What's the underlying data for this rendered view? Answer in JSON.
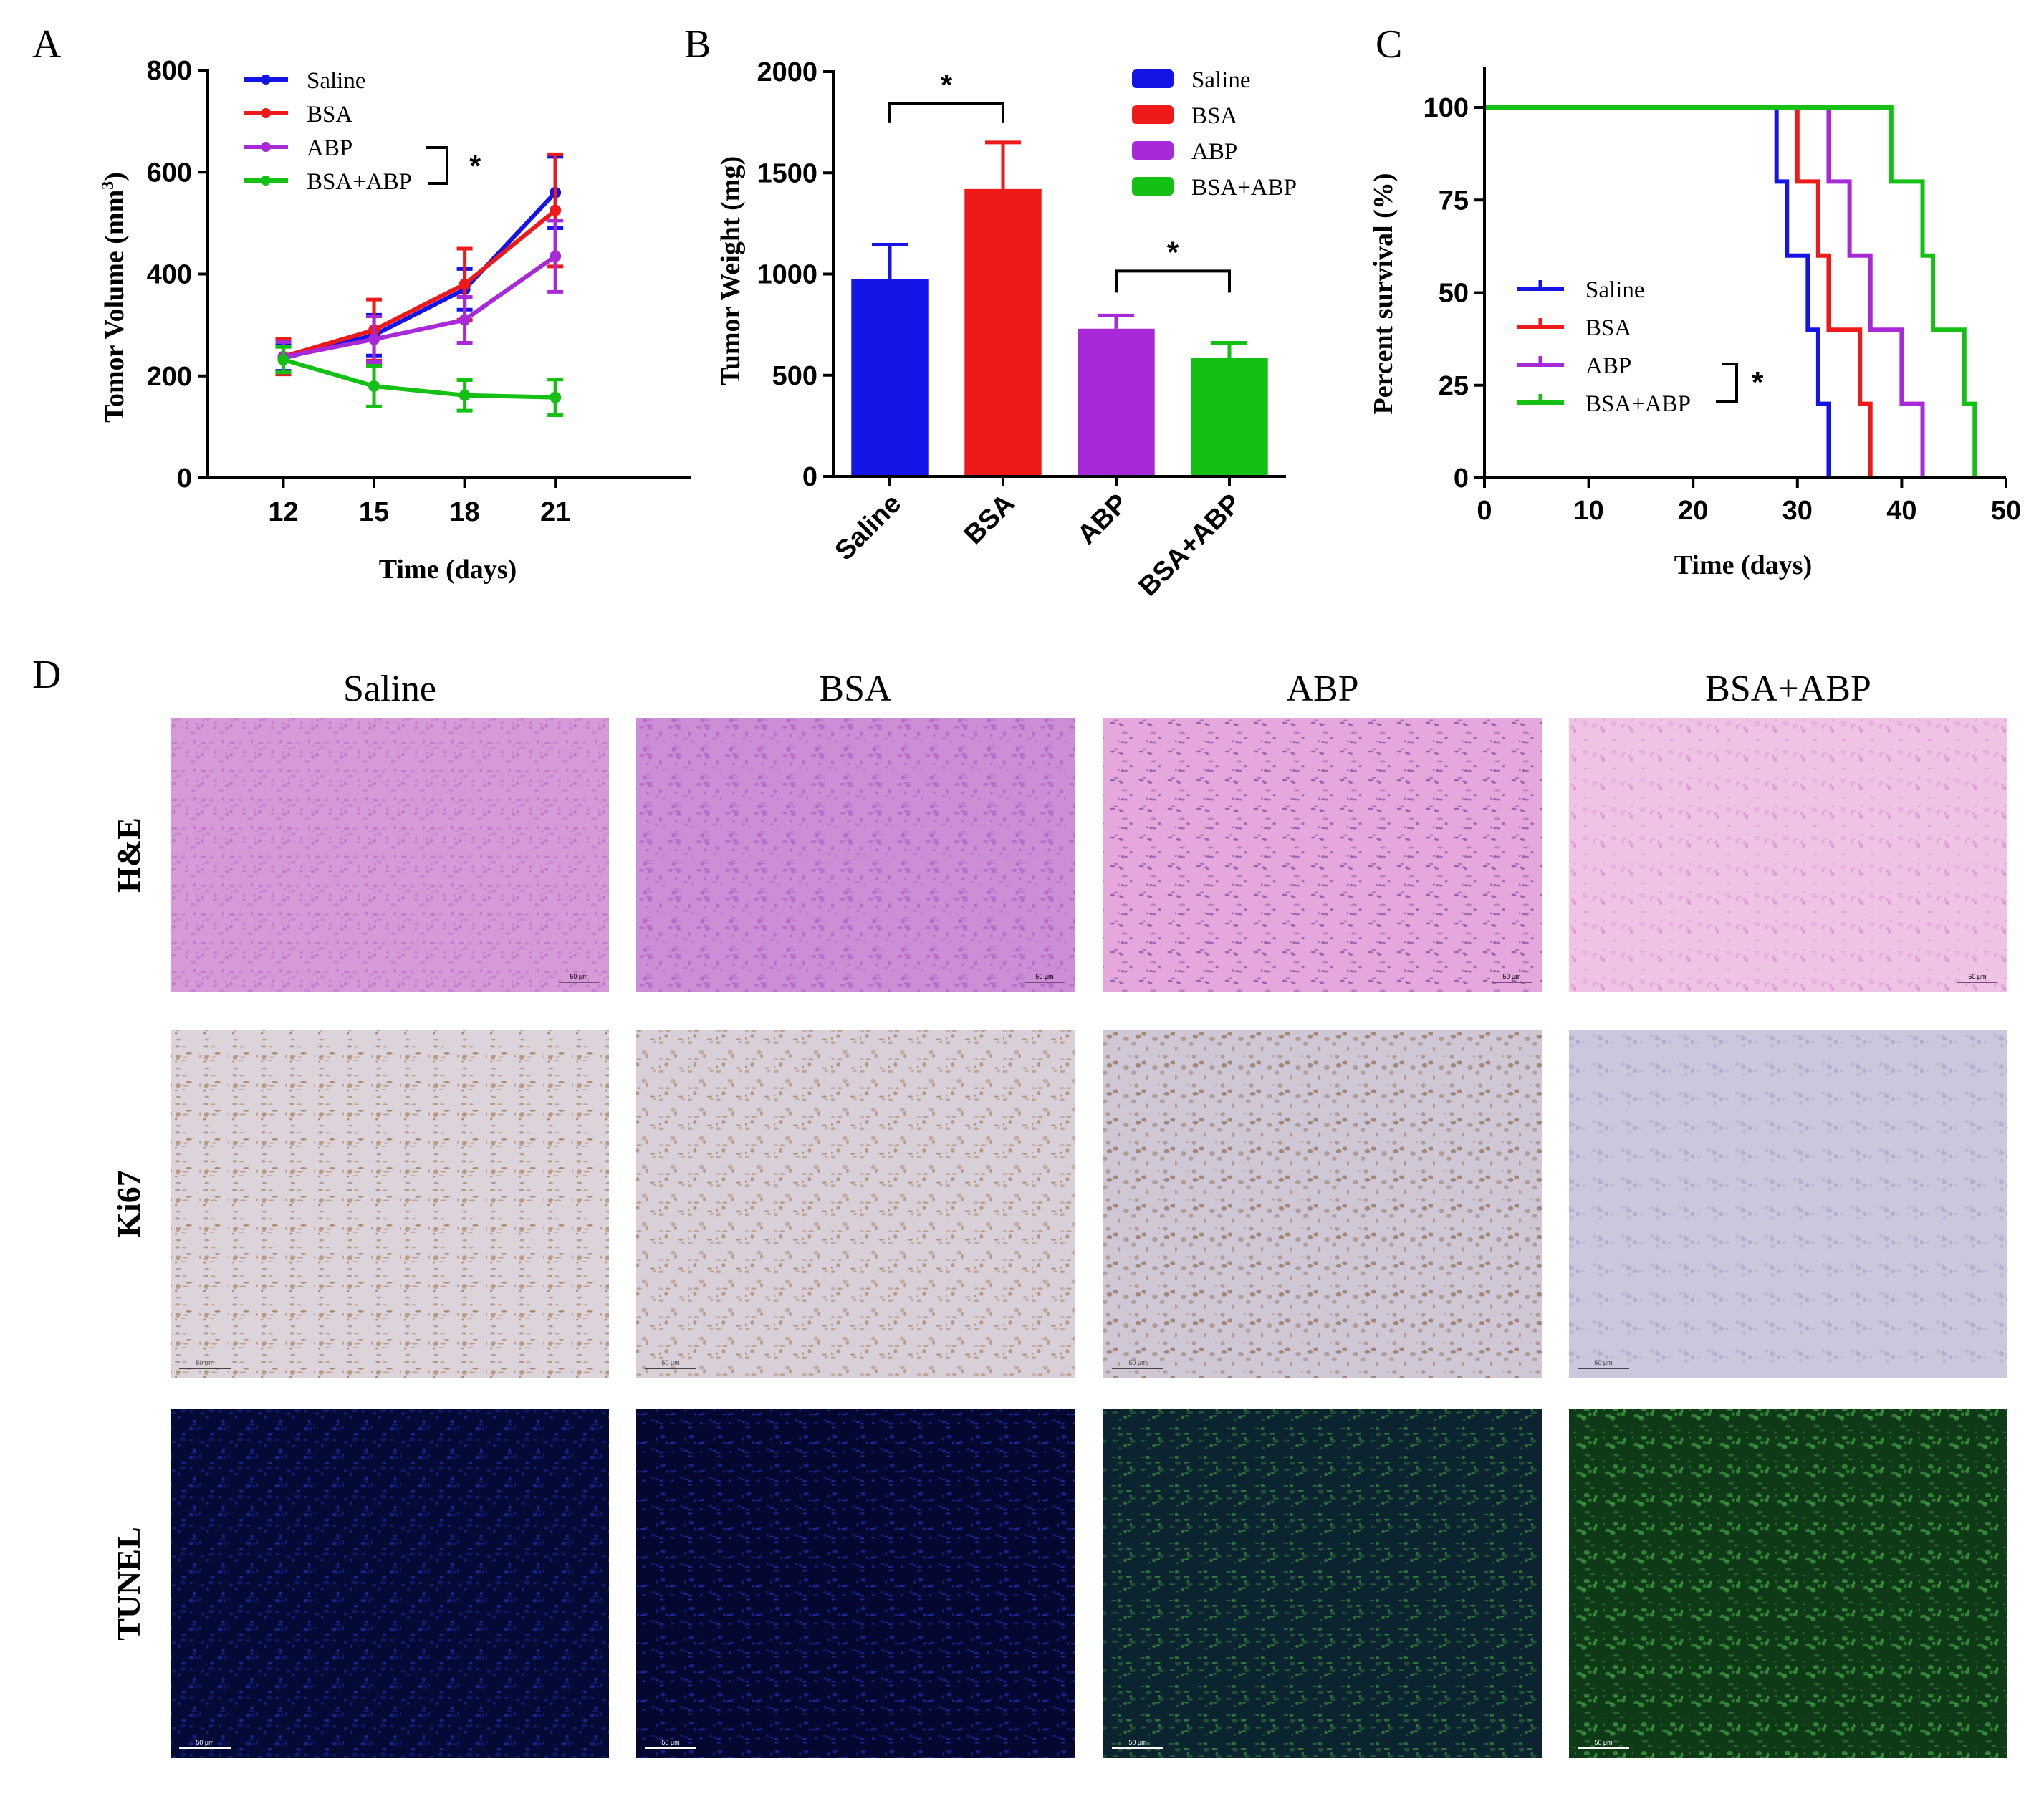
{
  "figure": {
    "colors": {
      "Saline": "#1414e6",
      "BSA": "#ee1a1a",
      "ABP": "#a829d8",
      "BSA+ABP": "#13c013"
    },
    "significance_mark": "*"
  },
  "chart_data": [
    {
      "panel": "A",
      "type": "line",
      "title": "",
      "xlabel": "Time (days)",
      "ylabel_main": "Tomor Volume (mm",
      "ylabel_sup": "3",
      "ylabel_close": ")",
      "x": [
        12,
        15,
        18,
        21
      ],
      "xlim": [
        9.5,
        25.5
      ],
      "ylim": [
        0,
        800
      ],
      "yticks": [
        0,
        200,
        400,
        600,
        800
      ],
      "legend": [
        "Saline",
        "BSA",
        "ABP",
        "BSA+ABP"
      ],
      "series": [
        {
          "name": "Saline",
          "values": [
            235,
            280,
            370,
            560
          ],
          "errors": [
            25,
            40,
            40,
            70
          ]
        },
        {
          "name": "BSA",
          "values": [
            238,
            290,
            380,
            525
          ],
          "errors": [
            35,
            60,
            70,
            110
          ]
        },
        {
          "name": "ABP",
          "values": [
            237,
            272,
            310,
            435
          ],
          "errors": [
            30,
            45,
            45,
            70
          ]
        },
        {
          "name": "BSA+ABP",
          "values": [
            232,
            180,
            162,
            158
          ],
          "errors": [
            25,
            40,
            30,
            35
          ]
        }
      ]
    },
    {
      "panel": "B",
      "type": "bar",
      "title": "",
      "xlabel": "",
      "ylabel": "Tumor Weight (mg)",
      "categories": [
        "Saline",
        "BSA",
        "ABP",
        "BSA+ABP"
      ],
      "values": [
        975,
        1420,
        730,
        585
      ],
      "errors": [
        170,
        230,
        65,
        75
      ],
      "ylim": [
        0,
        2000
      ],
      "yticks": [
        0,
        500,
        1000,
        1500,
        2000
      ],
      "legend": [
        "Saline",
        "BSA",
        "ABP",
        "BSA+ABP"
      ],
      "comparisons": [
        {
          "from": "Saline",
          "to": "BSA",
          "label": "*"
        },
        {
          "from": "ABP",
          "to": "BSA+ABP",
          "label": "*"
        }
      ]
    },
    {
      "panel": "C",
      "type": "line",
      "step": true,
      "title": "",
      "xlabel": "Time (days)",
      "ylabel": "Percent survival (%)",
      "xlim": [
        0,
        50
      ],
      "ylim": [
        0,
        100
      ],
      "xticks": [
        0,
        10,
        20,
        30,
        40,
        50
      ],
      "yticks": [
        0,
        25,
        50,
        75,
        100
      ],
      "legend": [
        "Saline",
        "BSA",
        "ABP",
        "BSA+ABP"
      ],
      "series": [
        {
          "name": "Saline",
          "x": [
            0,
            28,
            29,
            31,
            32,
            33
          ],
          "values": [
            100,
            80,
            60,
            40,
            20,
            0
          ]
        },
        {
          "name": "BSA",
          "x": [
            0,
            30,
            32,
            33,
            36,
            37
          ],
          "values": [
            100,
            80,
            60,
            40,
            20,
            0
          ]
        },
        {
          "name": "ABP",
          "x": [
            0,
            33,
            35,
            37,
            40,
            42
          ],
          "values": [
            100,
            80,
            60,
            40,
            20,
            0
          ]
        },
        {
          "name": "BSA+ABP",
          "x": [
            0,
            39,
            42,
            43,
            46,
            47
          ],
          "values": [
            100,
            80,
            60,
            40,
            20,
            0
          ]
        }
      ]
    }
  ],
  "panels": {
    "A": {
      "label": "A"
    },
    "B": {
      "label": "B"
    },
    "C": {
      "label": "C"
    },
    "D": {
      "label": "D",
      "columns": [
        "Saline",
        "BSA",
        "ABP",
        "BSA+ABP"
      ],
      "rows": [
        "H&E",
        "Ki67",
        "TUNEL"
      ],
      "scale_label": "50 μm",
      "images": [
        {
          "row": "H&E",
          "col": "Saline",
          "base": "#d79ad9",
          "dot": "#b569c6",
          "density": 0.55
        },
        {
          "row": "H&E",
          "col": "BSA",
          "base": "#cd8fd6",
          "dot": "#a85bc4",
          "density": 0.6
        },
        {
          "row": "H&E",
          "col": "ABP",
          "base": "#e6a9dc",
          "dot": "#6a3f99",
          "density": 0.35
        },
        {
          "row": "H&E",
          "col": "BSA+ABP",
          "base": "#f0c3e4",
          "dot": "#d48ccc",
          "density": 0.3
        },
        {
          "row": "Ki67",
          "col": "Saline",
          "base": "#ddd4da",
          "dot": "#9c6d3f",
          "density": 0.45
        },
        {
          "row": "Ki67",
          "col": "BSA",
          "base": "#d8cfd9",
          "dot": "#a4754a",
          "density": 0.35
        },
        {
          "row": "Ki67",
          "col": "ABP",
          "base": "#cfc6d6",
          "dot": "#8e6544",
          "density": 0.2
        },
        {
          "row": "Ki67",
          "col": "BSA+ABP",
          "base": "#cbc7dd",
          "dot": "#a8a1c9",
          "density": 0.15
        },
        {
          "row": "TUNEL",
          "col": "Saline",
          "base": "#050a36",
          "dot": "#2132b8",
          "density": 0.5
        },
        {
          "row": "TUNEL",
          "col": "BSA",
          "base": "#040830",
          "dot": "#2436c8",
          "density": 0.4
        },
        {
          "row": "TUNEL",
          "col": "ABP",
          "base": "#0c2430",
          "dot": "#3a9a3f",
          "density": 0.5
        },
        {
          "row": "TUNEL",
          "col": "BSA+ABP",
          "base": "#0e3a18",
          "dot": "#47b04a",
          "density": 0.6
        }
      ]
    }
  }
}
